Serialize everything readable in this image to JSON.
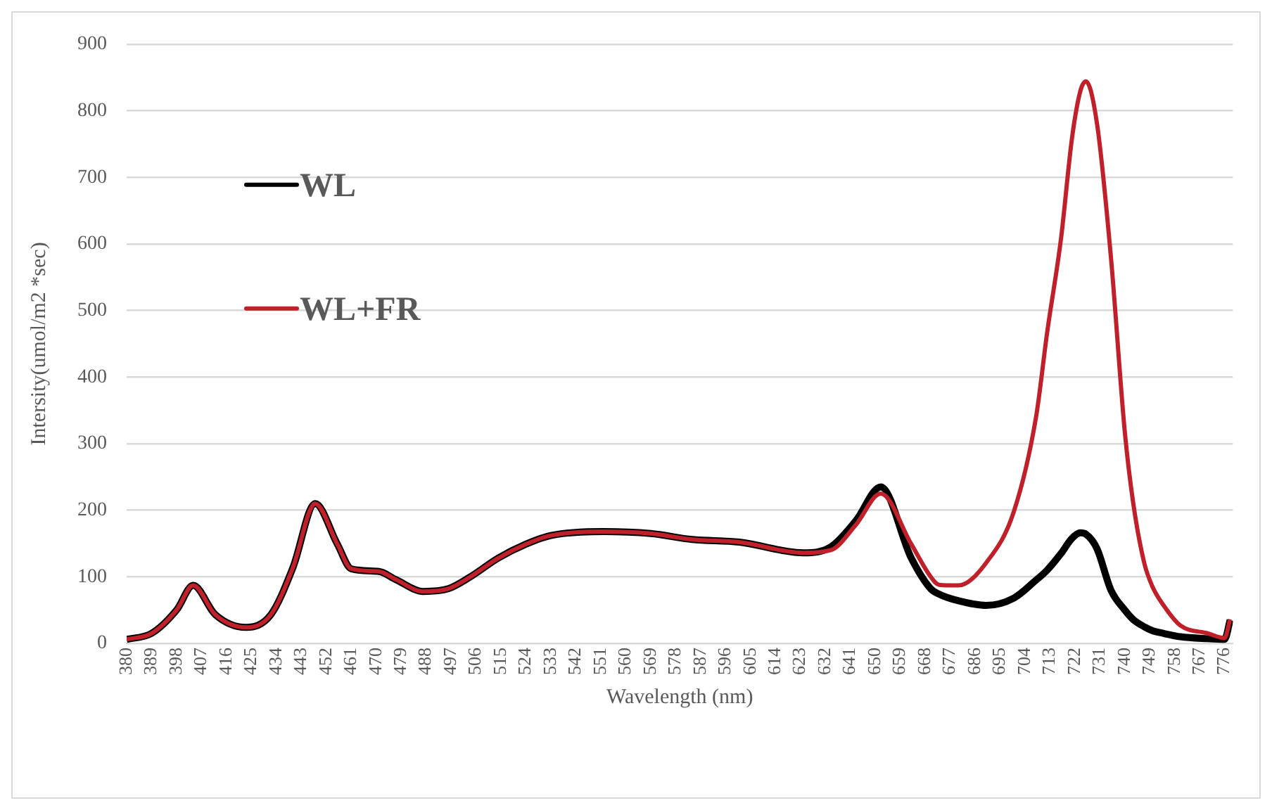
{
  "chart_data": {
    "type": "line",
    "xlabel": "Wavelength (nm)",
    "ylabel": "Intersity(umol/m2 *sec)",
    "x": [
      380,
      389,
      398,
      404,
      412,
      423,
      432,
      440,
      448,
      456,
      461,
      471,
      477,
      487,
      496,
      504,
      514,
      524,
      533,
      552,
      569,
      584,
      601,
      624,
      634,
      643,
      652,
      663,
      670,
      673,
      680,
      690,
      700,
      708,
      712,
      717,
      721,
      724,
      726,
      730,
      735,
      740,
      743,
      747,
      750,
      754,
      760,
      770,
      776,
      778
    ],
    "series": [
      {
        "name": "WL",
        "color": "#000000",
        "values": [
          6,
          15,
          50,
          87,
          43,
          24,
          43,
          114,
          210,
          149,
          112,
          108,
          96,
          78,
          82,
          100,
          128,
          149,
          162,
          168,
          165,
          156,
          152,
          136,
          145,
          184,
          235,
          128,
          82,
          74,
          64,
          57,
          68,
          95,
          110,
          135,
          158,
          166,
          164,
          142,
          80,
          50,
          36,
          25,
          19,
          15,
          10,
          7,
          6,
          35
        ]
      },
      {
        "name": "WL+FR",
        "color": "#c0202a",
        "values": [
          6,
          15,
          50,
          87,
          43,
          24,
          43,
          114,
          210,
          149,
          112,
          108,
          96,
          78,
          82,
          100,
          128,
          149,
          162,
          168,
          165,
          156,
          152,
          136,
          140,
          178,
          225,
          149,
          100,
          88,
          87,
          121,
          198,
          340,
          467,
          608,
          760,
          830,
          844,
          780,
          580,
          318,
          212,
          121,
          85,
          57,
          27,
          15,
          8,
          36
        ]
      }
    ],
    "xlim": [
      380,
      779
    ],
    "xticks": [
      380,
      389,
      398,
      407,
      416,
      425,
      434,
      443,
      452,
      461,
      470,
      479,
      488,
      497,
      506,
      515,
      524,
      533,
      542,
      551,
      560,
      569,
      578,
      587,
      596,
      605,
      614,
      623,
      632,
      641,
      650,
      659,
      668,
      677,
      686,
      695,
      704,
      713,
      722,
      731,
      740,
      749,
      758,
      767,
      776
    ],
    "ylim": [
      0,
      900
    ],
    "yticks": [
      0,
      100,
      200,
      300,
      400,
      500,
      600,
      700,
      800,
      900
    ],
    "grid": "y",
    "legend": "top left",
    "marker": "none",
    "line_style": "solid"
  }
}
